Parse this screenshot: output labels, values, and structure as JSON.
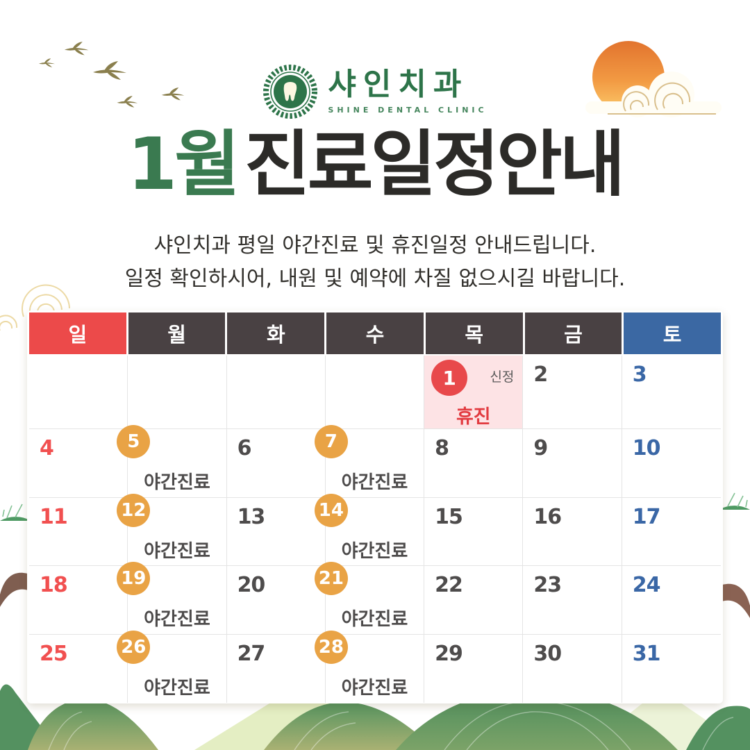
{
  "logo": {
    "clinic_name": "샤인치과",
    "clinic_name_en": "SHINE DENTAL CLINIC",
    "emblem_icon": "laurel-wreath-tooth-emblem",
    "brand_green": "#2d7449"
  },
  "header": {
    "title_month": "1월",
    "title_rest": "진료일정안내",
    "subtitle_line1": "샤인치과  평일 야간진료 및 휴진일정 안내드립니다.",
    "subtitle_line2": "일정 확인하시어, 내원 및 예약에 차질 없으시길 바랍니다."
  },
  "calendar": {
    "weekday_headers": [
      {
        "label": "일",
        "color": "#ec4a4a"
      },
      {
        "label": "월",
        "color": "#494143"
      },
      {
        "label": "화",
        "color": "#494143"
      },
      {
        "label": "수",
        "color": "#494143"
      },
      {
        "label": "목",
        "color": "#494143"
      },
      {
        "label": "금",
        "color": "#494143"
      },
      {
        "label": "토",
        "color": "#3b68a3"
      }
    ],
    "weeks": [
      [
        null,
        null,
        null,
        null,
        {
          "date": 1,
          "event": "holiday",
          "holiday_name": "신정",
          "label": "휴진"
        },
        {
          "date": 2
        },
        {
          "date": 3
        }
      ],
      [
        {
          "date": 4
        },
        {
          "date": 5,
          "event": "night",
          "label": "야간진료"
        },
        {
          "date": 6
        },
        {
          "date": 7,
          "event": "night",
          "label": "야간진료"
        },
        {
          "date": 8
        },
        {
          "date": 9
        },
        {
          "date": 10
        }
      ],
      [
        {
          "date": 11
        },
        {
          "date": 12,
          "event": "night",
          "label": "야간진료"
        },
        {
          "date": 13
        },
        {
          "date": 14,
          "event": "night",
          "label": "야간진료"
        },
        {
          "date": 15
        },
        {
          "date": 16
        },
        {
          "date": 17
        }
      ],
      [
        {
          "date": 18
        },
        {
          "date": 19,
          "event": "night",
          "label": "야간진료"
        },
        {
          "date": 20
        },
        {
          "date": 21,
          "event": "night",
          "label": "야간진료"
        },
        {
          "date": 22
        },
        {
          "date": 23
        },
        {
          "date": 24
        }
      ],
      [
        {
          "date": 25
        },
        {
          "date": 26,
          "event": "night",
          "label": "야간진료"
        },
        {
          "date": 27
        },
        {
          "date": 28,
          "event": "night",
          "label": "야간진료"
        },
        {
          "date": 29
        },
        {
          "date": 30
        },
        {
          "date": 31
        }
      ]
    ],
    "colors": {
      "sunday_date": "#f15050",
      "saturday_date": "#3a67a6",
      "weekday_date": "#4e4c4c",
      "night_badge": "#e9a345",
      "holiday_badge": "#e8494b",
      "holiday_cell_bg": "#fde3e5",
      "holiday_label": "#e23b40"
    }
  },
  "decorations": {
    "icons": [
      "flying-cranes-icon",
      "outline-cloud-icon",
      "sun-icon",
      "white-cloud-icon",
      "swirl-cloud-icon",
      "bush-icon",
      "tree-branch-icon",
      "mountains-icon"
    ],
    "background_top": "#fbe6ab",
    "mountain_green": "#55935f"
  }
}
